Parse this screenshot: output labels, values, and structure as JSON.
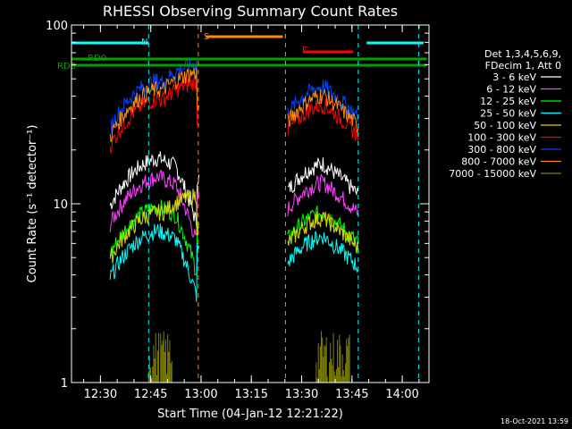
{
  "chart_data": {
    "type": "line",
    "title": "RHESSI Observing Summary Count Rates",
    "xlabel": "Start Time (04-Jan-12 12:21:22)",
    "ylabel": "Count Rate (s⁻¹ detector⁻¹)",
    "y_scale": "log",
    "ylim": [
      1,
      100
    ],
    "xlim_minutes": [
      0,
      221
    ],
    "x_tick_labels": [
      "12:30",
      "12:45",
      "13:00",
      "13:15",
      "13:30",
      "13:45",
      "14:00"
    ],
    "x_tick_minutes": [
      8.63,
      23.63,
      38.63,
      53.63,
      68.63,
      83.63,
      98.63
    ],
    "y_tick_labels": [
      "1",
      "10",
      "100"
    ],
    "y_tick_values": [
      1,
      10,
      100
    ],
    "legend_header": [
      "Det 1,3,4,5,6,9,",
      "FDecim 1, Att 0"
    ],
    "legend_position": "right",
    "series": [
      {
        "name": "3 - 6 keV",
        "color": "#ffffff",
        "x": [
          0,
          100
        ],
        "y": [
          null,
          null
        ]
      },
      {
        "name": "6 - 12 keV",
        "color": "#ff40ff",
        "x": [
          0,
          100
        ],
        "y": [
          null,
          null
        ]
      },
      {
        "name": "12 - 25 keV",
        "color": "#00ff00",
        "x": [
          0,
          100
        ],
        "y": [
          null,
          null
        ]
      },
      {
        "name": "25 - 50 keV",
        "color": "#00ffff",
        "x": [
          0,
          100
        ],
        "y": [
          null,
          null
        ]
      },
      {
        "name": "50 - 100 keV",
        "color": "#d8d800",
        "x": [
          0,
          100
        ],
        "y": [
          null,
          null
        ]
      },
      {
        "name": "100 - 300 keV",
        "color": "#ff0000",
        "x": [
          0,
          100
        ],
        "y": [
          null,
          null
        ]
      },
      {
        "name": "300 - 800 keV",
        "color": "#0040ff",
        "x": [
          0,
          100
        ],
        "y": [
          null,
          null
        ]
      },
      {
        "name": "800 - 7000 keV",
        "color": "#ff8c00",
        "x": [
          0,
          100
        ],
        "y": [
          null,
          null
        ]
      },
      {
        "name": "7000 - 15000 keV",
        "color": "#808000",
        "x": [
          0,
          100
        ],
        "y": [
          null,
          null
        ]
      }
    ],
    "annotations": [
      {
        "label": "N",
        "color": "#00ffff"
      },
      {
        "label": "S",
        "color": "#ff8c00"
      },
      {
        "label": "F",
        "color": "#ff0000"
      },
      {
        "label": "RD0",
        "color": "#00a000"
      },
      {
        "label": "RD6",
        "color": "#00a000"
      }
    ],
    "timestamp": "18-Oct-2021 13:59"
  }
}
